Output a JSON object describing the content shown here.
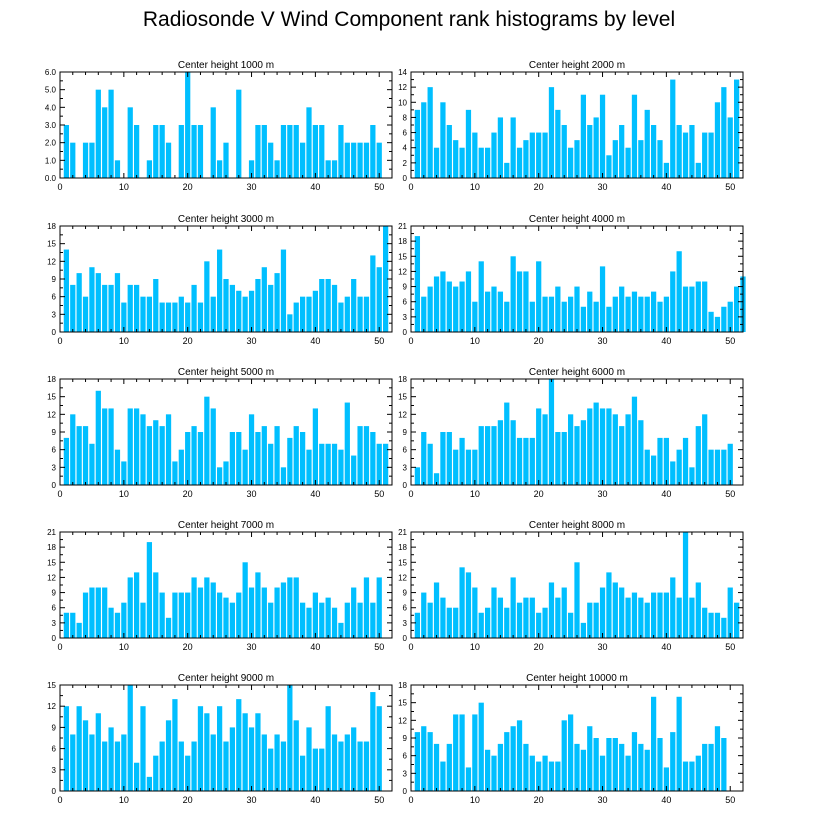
{
  "title": "Radiosonde V Wind Component rank histograms by level",
  "colors": {
    "bar": "#00bfff",
    "axis": "#000000",
    "background": "#ffffff"
  },
  "chart_data": [
    {
      "type": "bar",
      "title": "Center height 1000 m",
      "xlim": [
        0,
        52
      ],
      "xticks": [
        0,
        10,
        20,
        30,
        40,
        50
      ],
      "ylim": [
        0,
        6
      ],
      "yticks": [
        "0.0",
        "1.0",
        "2.0",
        "3.0",
        "4.0",
        "5.0",
        "6.0"
      ],
      "values": [
        3,
        2,
        0,
        2,
        2,
        5,
        4,
        5,
        1,
        0,
        4,
        3,
        0,
        1,
        3,
        3,
        2,
        0,
        3,
        6,
        3,
        3,
        0,
        4,
        1,
        2,
        0,
        5,
        0,
        1,
        3,
        3,
        2,
        1,
        3,
        3,
        3,
        2,
        4,
        3,
        3,
        1,
        1,
        3,
        2,
        2,
        2,
        2,
        3,
        2
      ]
    },
    {
      "type": "bar",
      "title": "Center height 2000 m",
      "xlim": [
        0,
        52
      ],
      "xticks": [
        0,
        10,
        20,
        30,
        40,
        50
      ],
      "ylim": [
        0,
        14
      ],
      "yticks": [
        "0",
        "2",
        "4",
        "6",
        "8",
        "10",
        "12",
        "14"
      ],
      "values": [
        9,
        10,
        12,
        4,
        10,
        7,
        5,
        4,
        9,
        6,
        4,
        4,
        6,
        8,
        2,
        8,
        4,
        5,
        6,
        6,
        6,
        12,
        9,
        7,
        4,
        5,
        11,
        7,
        8,
        11,
        3,
        5,
        7,
        4,
        11,
        5,
        9,
        7,
        5,
        2,
        13,
        7,
        6,
        7,
        2,
        6,
        6,
        10,
        12,
        8,
        13
      ]
    },
    {
      "type": "bar",
      "title": "Center height 3000 m",
      "xlim": [
        0,
        52
      ],
      "xticks": [
        0,
        10,
        20,
        30,
        40,
        50
      ],
      "ylim": [
        0,
        18
      ],
      "yticks": [
        "0",
        "3",
        "6",
        "9",
        "12",
        "15",
        "18"
      ],
      "values": [
        14,
        8,
        10,
        6,
        11,
        10,
        8,
        8,
        10,
        5,
        8,
        8,
        6,
        6,
        9,
        5,
        5,
        5,
        6,
        5,
        8,
        5,
        12,
        6,
        14,
        9,
        8,
        7,
        6,
        7,
        9,
        11,
        8,
        10,
        14,
        3,
        5,
        6,
        6,
        7,
        9,
        9,
        8,
        5,
        6,
        9,
        6,
        6,
        13,
        11,
        18
      ]
    },
    {
      "type": "bar",
      "title": "Center height 4000 m",
      "xlim": [
        0,
        52
      ],
      "xticks": [
        0,
        10,
        20,
        30,
        40,
        50
      ],
      "ylim": [
        0,
        21
      ],
      "yticks": [
        "0",
        "3",
        "6",
        "9",
        "12",
        "15",
        "18",
        "21"
      ],
      "values": [
        19,
        7,
        9,
        11,
        12,
        10,
        9,
        10,
        12,
        6,
        14,
        8,
        9,
        8,
        6,
        15,
        12,
        12,
        6,
        14,
        7,
        7,
        9,
        6,
        7,
        9,
        5,
        8,
        6,
        13,
        5,
        7,
        9,
        7,
        8,
        7,
        7,
        8,
        6,
        7,
        12,
        16,
        9,
        9,
        10,
        10,
        4,
        3,
        5,
        6,
        9,
        11
      ]
    },
    {
      "type": "bar",
      "title": "Center height 5000 m",
      "xlim": [
        0,
        52
      ],
      "xticks": [
        0,
        10,
        20,
        30,
        40,
        50
      ],
      "ylim": [
        0,
        18
      ],
      "yticks": [
        "0",
        "3",
        "6",
        "9",
        "12",
        "15",
        "18"
      ],
      "values": [
        8,
        12,
        10,
        10,
        7,
        16,
        13,
        13,
        6,
        4,
        13,
        13,
        12,
        10,
        11,
        10,
        12,
        4,
        6,
        9,
        10,
        9,
        15,
        13,
        3,
        4,
        9,
        9,
        6,
        12,
        9,
        10,
        7,
        10,
        3,
        8,
        10,
        9,
        6,
        13,
        7,
        7,
        7,
        6,
        14,
        5,
        10,
        10,
        9,
        7,
        7
      ]
    },
    {
      "type": "bar",
      "title": "Center height 6000 m",
      "xlim": [
        0,
        52
      ],
      "xticks": [
        0,
        10,
        20,
        30,
        40,
        50
      ],
      "ylim": [
        0,
        18
      ],
      "yticks": [
        "0",
        "3",
        "6",
        "9",
        "12",
        "15",
        "18"
      ],
      "values": [
        3,
        9,
        7,
        2,
        9,
        9,
        6,
        8,
        6,
        6,
        10,
        10,
        10,
        11,
        14,
        11,
        8,
        8,
        8,
        13,
        12,
        18,
        9,
        9,
        12,
        10,
        11,
        13,
        14,
        13,
        13,
        12,
        10,
        12,
        15,
        11,
        6,
        5,
        8,
        8,
        4,
        6,
        8,
        3,
        10,
        12,
        6,
        6,
        6,
        7
      ]
    },
    {
      "type": "bar",
      "title": "Center height 7000 m",
      "xlim": [
        0,
        52
      ],
      "xticks": [
        0,
        10,
        20,
        30,
        40,
        50
      ],
      "ylim": [
        0,
        21
      ],
      "yticks": [
        "0",
        "3",
        "6",
        "9",
        "12",
        "15",
        "18",
        "21"
      ],
      "values": [
        5,
        5,
        3,
        9,
        10,
        10,
        10,
        6,
        5,
        7,
        12,
        13,
        7,
        19,
        13,
        9,
        4,
        9,
        9,
        9,
        12,
        10,
        12,
        11,
        9,
        8,
        7,
        9,
        15,
        10,
        13,
        10,
        7,
        10,
        11,
        12,
        12,
        7,
        6,
        9,
        7,
        8,
        6,
        3,
        7,
        10,
        7,
        12,
        7,
        12
      ]
    },
    {
      "type": "bar",
      "title": "Center height 8000 m",
      "xlim": [
        0,
        52
      ],
      "xticks": [
        0,
        10,
        20,
        30,
        40,
        50
      ],
      "ylim": [
        0,
        21
      ],
      "yticks": [
        "0",
        "3",
        "6",
        "9",
        "12",
        "15",
        "18",
        "21"
      ],
      "values": [
        5,
        9,
        7,
        11,
        8,
        6,
        6,
        14,
        13,
        10,
        5,
        6,
        10,
        8,
        6,
        12,
        7,
        8,
        8,
        5,
        6,
        11,
        8,
        10,
        5,
        15,
        3,
        7,
        7,
        10,
        13,
        11,
        10,
        8,
        9,
        8,
        7,
        9,
        9,
        9,
        12,
        8,
        21,
        8,
        11,
        6,
        5,
        5,
        4,
        10,
        7
      ]
    },
    {
      "type": "bar",
      "title": "Center height 9000 m",
      "xlim": [
        0,
        52
      ],
      "xticks": [
        0,
        10,
        20,
        30,
        40,
        50
      ],
      "ylim": [
        0,
        15
      ],
      "yticks": [
        "0",
        "3",
        "6",
        "9",
        "12",
        "15"
      ],
      "values": [
        12,
        8,
        12,
        10,
        8,
        11,
        7,
        9,
        7,
        8,
        15,
        4,
        12,
        2,
        5,
        7,
        10,
        13,
        7,
        5,
        7,
        12,
        11,
        8,
        12,
        7,
        9,
        13,
        11,
        9,
        11,
        8,
        6,
        8,
        7,
        15,
        10,
        5,
        9,
        6,
        6,
        12,
        8,
        7,
        8,
        9,
        7,
        7,
        14,
        12
      ]
    },
    {
      "type": "bar",
      "title": "Center height 10000 m",
      "xlim": [
        0,
        52
      ],
      "xticks": [
        0,
        10,
        20,
        30,
        40,
        50
      ],
      "ylim": [
        0,
        18
      ],
      "yticks": [
        "0",
        "3",
        "6",
        "9",
        "12",
        "15",
        "18"
      ],
      "values": [
        10,
        11,
        10,
        8,
        5,
        8,
        13,
        13,
        4,
        13,
        15,
        7,
        6,
        8,
        10,
        11,
        12,
        8,
        6,
        5,
        6,
        5,
        5,
        12,
        13,
        8,
        7,
        11,
        9,
        6,
        9,
        9,
        8,
        6,
        10,
        8,
        7,
        16,
        9,
        4,
        10,
        16,
        5,
        5,
        6,
        8,
        8,
        11,
        9
      ]
    }
  ]
}
